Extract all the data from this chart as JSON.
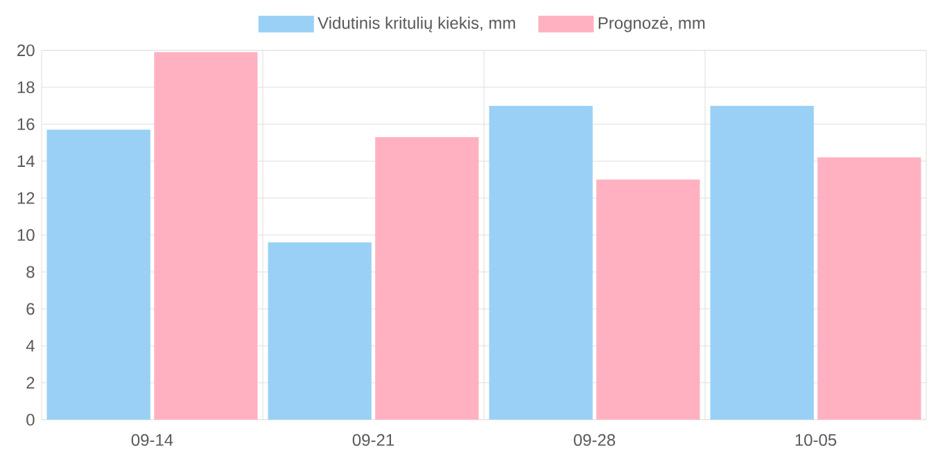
{
  "chart_data": {
    "type": "bar",
    "categories": [
      "09-14",
      "09-21",
      "09-28",
      "10-05"
    ],
    "series": [
      {
        "name": "Vidutinis kritulių kiekis, mm",
        "color": "#9ad0f5",
        "values": [
          15.7,
          9.6,
          17.0,
          17.0
        ]
      },
      {
        "name": "Prognozė, mm",
        "color": "#ffb1c1",
        "values": [
          19.9,
          15.3,
          13.0,
          14.2
        ]
      }
    ],
    "ylim": [
      0,
      20
    ],
    "yticks": [
      0,
      2,
      4,
      6,
      8,
      10,
      12,
      14,
      16,
      18,
      20
    ],
    "grid": true,
    "legend": "top"
  }
}
